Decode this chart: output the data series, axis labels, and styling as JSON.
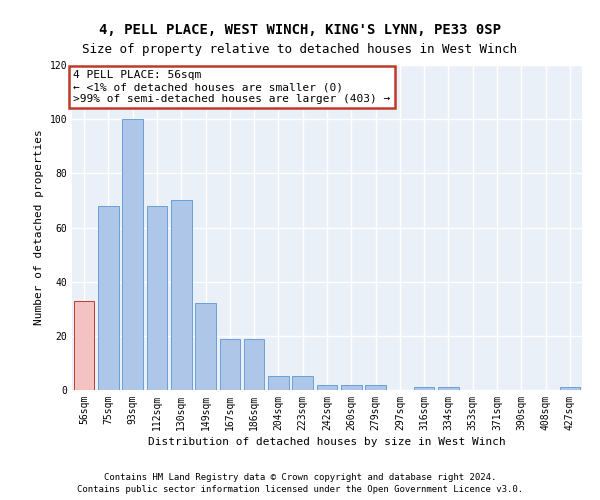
{
  "title": "4, PELL PLACE, WEST WINCH, KING'S LYNN, PE33 0SP",
  "subtitle": "Size of property relative to detached houses in West Winch",
  "xlabel": "Distribution of detached houses by size in West Winch",
  "ylabel": "Number of detached properties",
  "categories": [
    "56sqm",
    "75sqm",
    "93sqm",
    "112sqm",
    "130sqm",
    "149sqm",
    "167sqm",
    "186sqm",
    "204sqm",
    "223sqm",
    "242sqm",
    "260sqm",
    "279sqm",
    "297sqm",
    "316sqm",
    "334sqm",
    "353sqm",
    "371sqm",
    "390sqm",
    "408sqm",
    "427sqm"
  ],
  "values": [
    33,
    68,
    100,
    68,
    70,
    32,
    19,
    19,
    5,
    5,
    2,
    2,
    2,
    0,
    1,
    1,
    0,
    0,
    0,
    0,
    1
  ],
  "bar_color": "#aec6e8",
  "bar_edge_color": "#6a9fd8",
  "highlight_bar_color": "#f4c2c2",
  "highlight_bar_edge_color": "#c0392b",
  "highlight_index": 0,
  "annotation_box_edge_color": "#c0392b",
  "annotation_text": "4 PELL PLACE: 56sqm\n← <1% of detached houses are smaller (0)\n>99% of semi-detached houses are larger (403) →",
  "ylim": [
    0,
    120
  ],
  "yticks": [
    0,
    20,
    40,
    60,
    80,
    100,
    120
  ],
  "bg_color": "#eaf0f8",
  "footer1": "Contains HM Land Registry data © Crown copyright and database right 2024.",
  "footer2": "Contains public sector information licensed under the Open Government Licence v3.0.",
  "title_fontsize": 10,
  "subtitle_fontsize": 9,
  "axis_label_fontsize": 8,
  "tick_fontsize": 7,
  "annotation_fontsize": 8,
  "footer_fontsize": 6.5
}
